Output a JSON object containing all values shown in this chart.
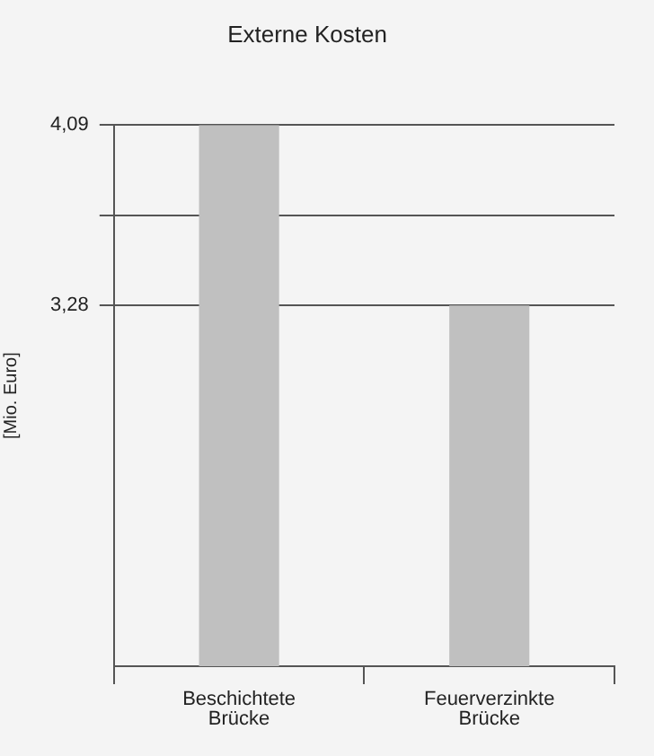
{
  "chart_data": {
    "type": "bar",
    "title": "Externe Kosten",
    "ylabel": "[Mio. Euro]",
    "categories": [
      "Beschichtete Brücke",
      "Feuerverzinkte Brücke"
    ],
    "values": [
      4.09,
      3.28
    ],
    "color": "#c0c0c0",
    "ylim": [
      1.66,
      4.09
    ],
    "yticks": [
      {
        "value": 3.28,
        "label": "3,28"
      },
      {
        "value": 3.685,
        "label": null
      },
      {
        "value": 4.09,
        "label": "4,09"
      }
    ],
    "grid": "y",
    "legend": false
  }
}
